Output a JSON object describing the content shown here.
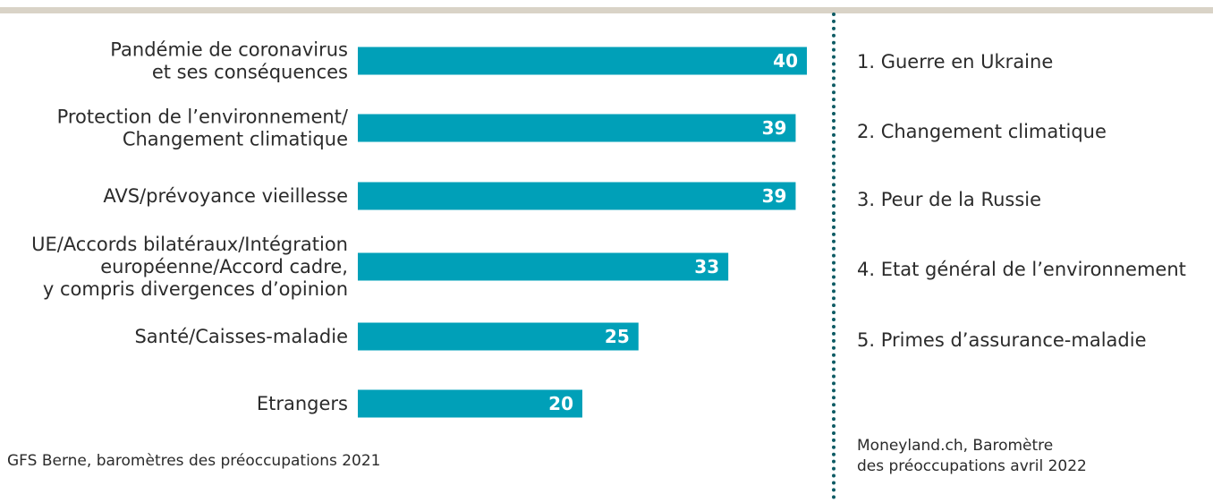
{
  "chart_data": {
    "type": "bar",
    "orientation": "horizontal",
    "categories": [
      [
        "Pandémie de coronavirus",
        "et ses conséquences"
      ],
      [
        "Protection de l’environnement/",
        "Changement climatique"
      ],
      [
        "AVS/prévoyance vieillesse"
      ],
      [
        "UE/Accords bilatéraux/Intégration",
        "européenne/Accord cadre,",
        "y compris divergences d’opinion"
      ],
      [
        "Santé/Caisses-maladie"
      ],
      [
        "Etrangers"
      ]
    ],
    "values": [
      40,
      39,
      39,
      33,
      25,
      20
    ],
    "value_labels": [
      "40",
      "39",
      "39",
      "33",
      "25",
      "20"
    ],
    "bar_color": "#00a0b8",
    "value_label_color": "#ffffff",
    "xlim": [
      0,
      40
    ],
    "grid": false,
    "source": "GFS Berne, baromètres des préoccupations 2021"
  },
  "ranking": {
    "items": [
      "1. Guerre en Ukraine",
      "2. Changement climatique",
      "3. Peur de la Russie",
      "4. Etat général de l’environnement",
      "5. Primes d’assurance-maladie"
    ],
    "source_line1": "Moneyland.ch, Baromètre",
    "source_line2": "des préoccupations avril 2022"
  },
  "colors": {
    "top_rule": "#d9d3c7",
    "divider": "#0e5b64",
    "text": "#2b2b2b"
  }
}
